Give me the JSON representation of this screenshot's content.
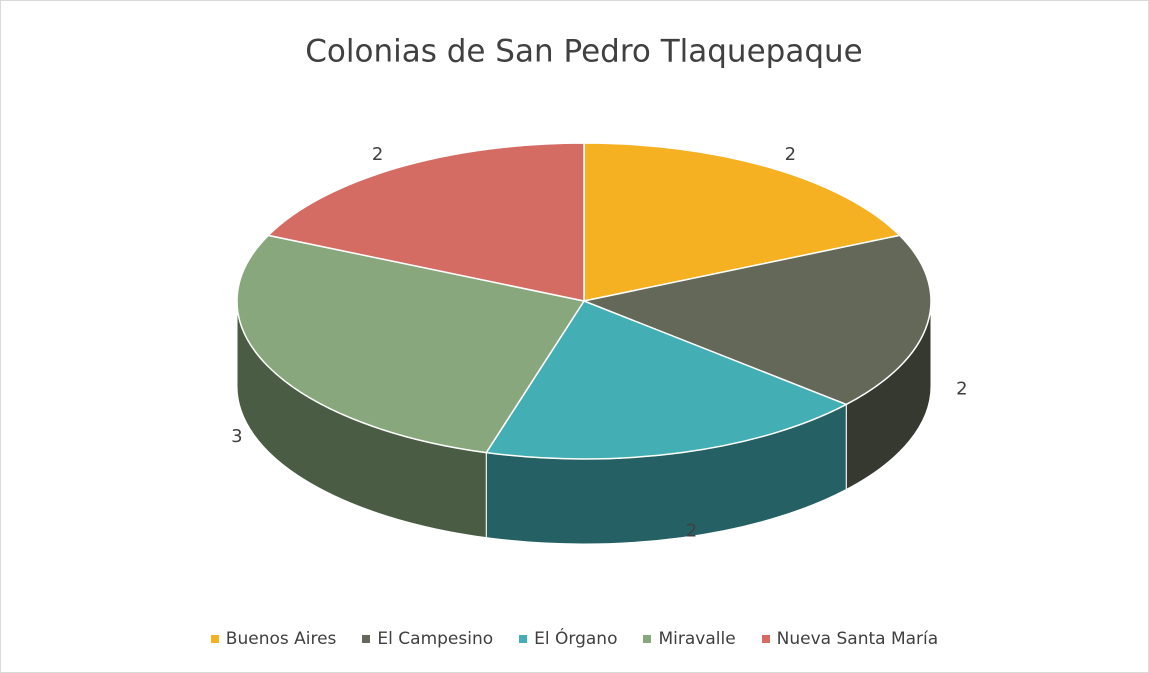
{
  "chart_data": {
    "type": "pie3d",
    "title": "Colonias de San Pedro Tlaquepaque",
    "categories": [
      "Buenos Aires",
      "El Campesino",
      "El Órgano",
      "Miravalle",
      "Nueva Santa María"
    ],
    "values": [
      2,
      2,
      2,
      3,
      2
    ],
    "colors": [
      "#f5b122",
      "#636858",
      "#43afb5",
      "#89a77c",
      "#d46c63"
    ],
    "legend": "bottom"
  }
}
